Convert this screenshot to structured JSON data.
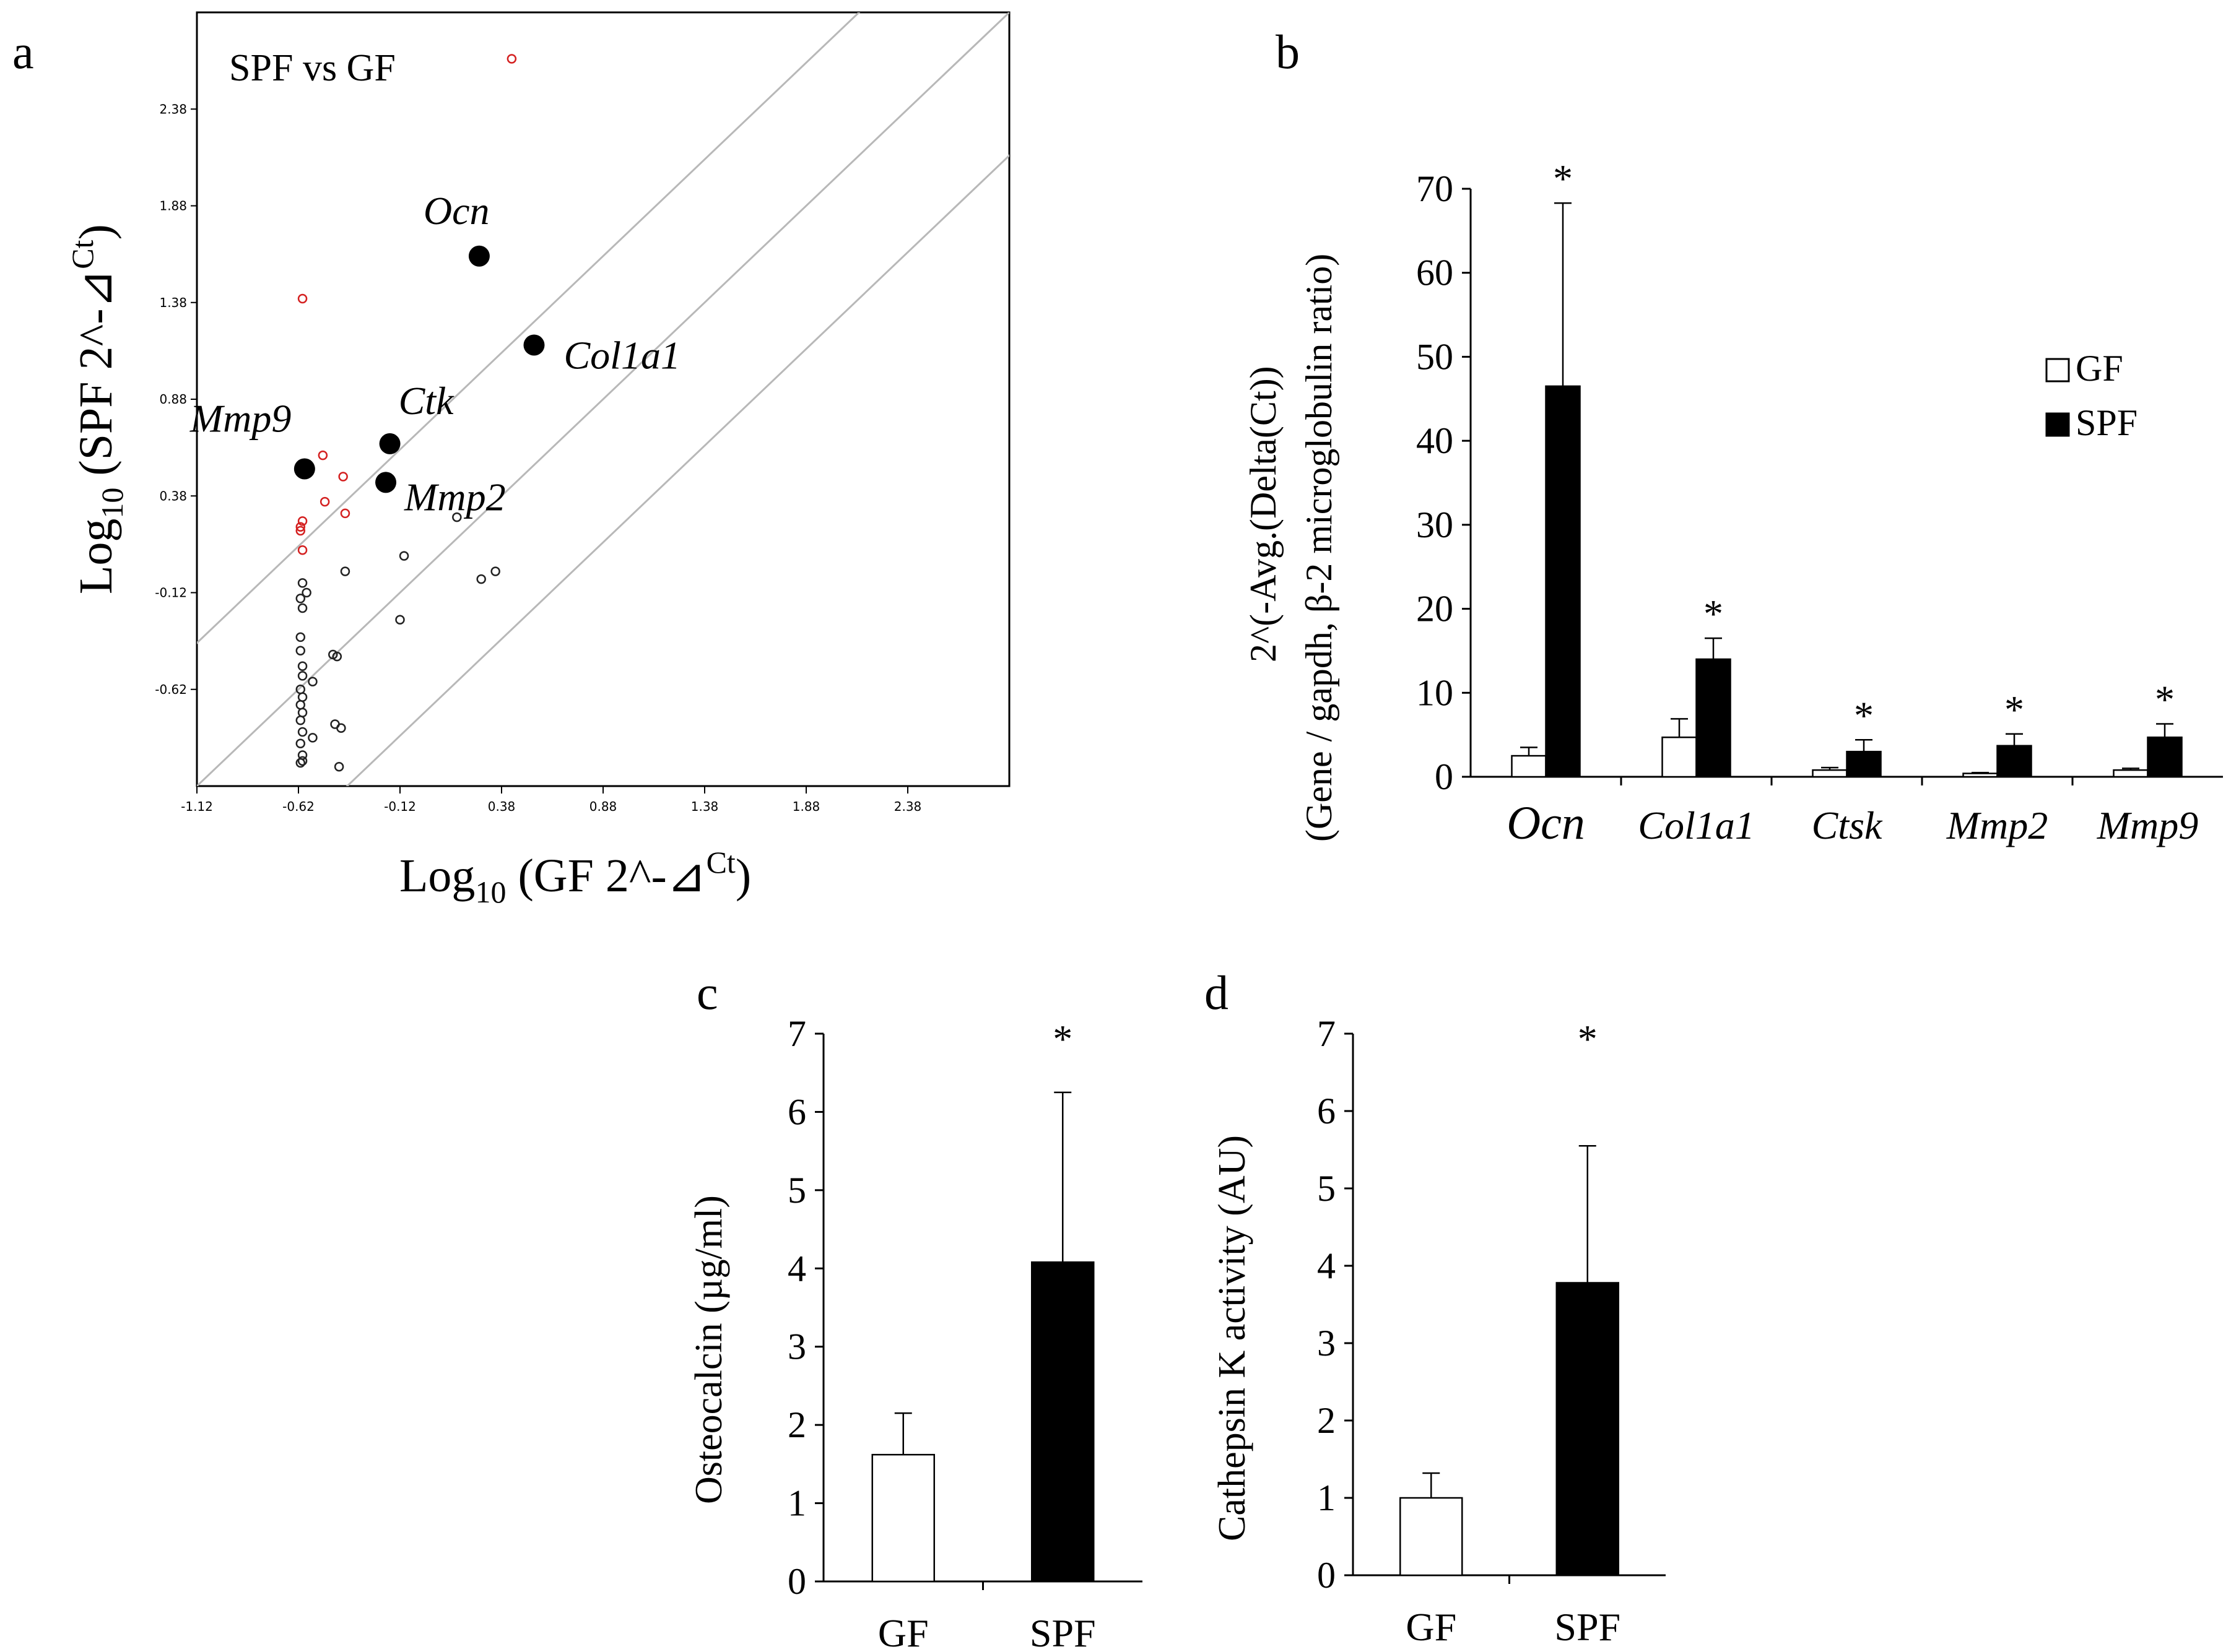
{
  "panels": {
    "a": "a",
    "b": "b",
    "c": "c",
    "d": "d"
  },
  "chart_data": [
    {
      "type": "scatter",
      "title": "SPF vs GF",
      "xlabel": "Log10 (GF 2^-⊿Ct)",
      "ylabel": "Log10 (SPF 2^-⊿Ct)",
      "xlabel_parts": {
        "pre": "Log",
        "sub": "10",
        "post": " (GF 2^-⊿",
        "sup": "Ct",
        "end": ")"
      },
      "ylabel_parts": {
        "pre": "Log",
        "sub": "10",
        "post": " (SPF 2^-⊿",
        "sup": "Ct",
        "end": ")"
      },
      "xlim": [
        -1.12,
        2.88
      ],
      "ylim": [
        -1.12,
        2.88
      ],
      "x_ticks": [
        -1.12,
        -0.62,
        -0.12,
        0.38,
        0.88,
        1.38,
        1.88,
        2.38
      ],
      "y_ticks": [
        -0.62,
        -0.12,
        0.38,
        0.88,
        1.38,
        1.88,
        2.38
      ],
      "x_tick_labels": [
        "-1.12",
        "-0.62",
        "-0.12",
        "0.38",
        "0.88",
        "1.38",
        "1.88",
        "2.38"
      ],
      "y_tick_labels": [
        "-0.62",
        "-0.12",
        "0.38",
        "0.88",
        "1.38",
        "1.88",
        "2.38"
      ],
      "reference_lines": [
        {
          "slope": 1,
          "intercept": -0.74
        },
        {
          "slope": 1,
          "intercept": 0
        },
        {
          "slope": 1,
          "intercept": 0.74
        }
      ],
      "highlighted": [
        {
          "label": "Ocn",
          "x": 0.27,
          "y": 1.62
        },
        {
          "label": "Col1a1",
          "x": 0.54,
          "y": 1.16
        },
        {
          "label": "Ctk",
          "x": -0.17,
          "y": 0.65
        },
        {
          "label": "Mmp2",
          "x": -0.19,
          "y": 0.45
        },
        {
          "label": "Mmp9",
          "x": -0.59,
          "y": 0.52
        }
      ],
      "upregulated_points": [
        {
          "x": 0.43,
          "y": 2.64
        },
        {
          "x": -0.6,
          "y": 1.4
        },
        {
          "x": -0.5,
          "y": 0.59
        },
        {
          "x": -0.4,
          "y": 0.48
        },
        {
          "x": -0.49,
          "y": 0.35
        },
        {
          "x": -0.39,
          "y": 0.29
        },
        {
          "x": -0.6,
          "y": 0.25
        },
        {
          "x": -0.61,
          "y": 0.22
        },
        {
          "x": -0.61,
          "y": 0.2
        },
        {
          "x": -0.6,
          "y": 0.1
        }
      ],
      "other_points": [
        {
          "x": 0.16,
          "y": 0.27
        },
        {
          "x": -0.1,
          "y": 0.07
        },
        {
          "x": 0.35,
          "y": -0.01
        },
        {
          "x": 0.28,
          "y": -0.05
        },
        {
          "x": -0.39,
          "y": -0.01
        },
        {
          "x": -0.6,
          "y": -0.07
        },
        {
          "x": -0.58,
          "y": -0.12
        },
        {
          "x": -0.61,
          "y": -0.15
        },
        {
          "x": -0.6,
          "y": -0.2
        },
        {
          "x": -0.12,
          "y": -0.26
        },
        {
          "x": -0.61,
          "y": -0.35
        },
        {
          "x": -0.61,
          "y": -0.42
        },
        {
          "x": -0.45,
          "y": -0.44
        },
        {
          "x": -0.43,
          "y": -0.45
        },
        {
          "x": -0.6,
          "y": -0.5
        },
        {
          "x": -0.6,
          "y": -0.55
        },
        {
          "x": -0.55,
          "y": -0.58
        },
        {
          "x": -0.61,
          "y": -0.62
        },
        {
          "x": -0.6,
          "y": -0.66
        },
        {
          "x": -0.61,
          "y": -0.7
        },
        {
          "x": -0.6,
          "y": -0.74
        },
        {
          "x": -0.61,
          "y": -0.78
        },
        {
          "x": -0.44,
          "y": -0.8
        },
        {
          "x": -0.41,
          "y": -0.82
        },
        {
          "x": -0.6,
          "y": -0.84
        },
        {
          "x": -0.55,
          "y": -0.87
        },
        {
          "x": -0.61,
          "y": -0.9
        },
        {
          "x": -0.6,
          "y": -0.96
        },
        {
          "x": -0.61,
          "y": -1.0
        },
        {
          "x": -0.42,
          "y": -1.02
        },
        {
          "x": -0.6,
          "y": -0.99
        }
      ]
    },
    {
      "type": "bar",
      "categories": [
        "Ocn",
        "Col1a1",
        "Ctsk",
        "Mmp2",
        "Mmp9"
      ],
      "series": [
        {
          "name": "GF",
          "color": "#ffffff",
          "values": [
            2.5,
            4.7,
            0.8,
            0.4,
            0.8
          ],
          "errors": [
            1.0,
            2.2,
            0.3,
            0.1,
            0.2
          ]
        },
        {
          "name": "SPF",
          "color": "#000000",
          "values": [
            46.5,
            14.0,
            3.0,
            3.7,
            4.7
          ],
          "errors": [
            21.8,
            2.5,
            1.4,
            1.4,
            1.6
          ]
        }
      ],
      "significance": [
        "*",
        "*",
        "*",
        "*",
        "*"
      ],
      "ylabel_line1": "2^(-Avg.(Delta(Ct))",
      "ylabel_line2": "(Gene / gapdh,  β-2 microglobulin ratio)",
      "ylim": [
        0,
        70
      ],
      "y_ticks": [
        0,
        10,
        20,
        30,
        40,
        50,
        60,
        70
      ],
      "y_tick_labels": [
        "0",
        "10",
        "20",
        "30",
        "40",
        "50",
        "60",
        "70"
      ],
      "legend": [
        "GF",
        "SPF"
      ],
      "legend_position": "top-right"
    },
    {
      "type": "bar",
      "categories": [
        "GF",
        "SPF"
      ],
      "values": [
        1.62,
        4.08
      ],
      "errors": [
        0.53,
        2.17
      ],
      "colors": [
        "#ffffff",
        "#000000"
      ],
      "significance": [
        "",
        "*"
      ],
      "ylabel": "Osteocalcin  (µg/ml)",
      "ylim": [
        0,
        7
      ],
      "y_ticks": [
        0,
        1,
        2,
        3,
        4,
        5,
        6,
        7
      ],
      "y_tick_labels": [
        "0",
        "1",
        "2",
        "3",
        "4",
        "5",
        "6",
        "7"
      ]
    },
    {
      "type": "bar",
      "categories": [
        "GF",
        "SPF"
      ],
      "values": [
        1.0,
        3.78
      ],
      "errors": [
        0.32,
        1.77
      ],
      "colors": [
        "#ffffff",
        "#000000"
      ],
      "significance": [
        "",
        "*"
      ],
      "ylabel": "Cathepsin K activity (AU)",
      "ylim": [
        0,
        7
      ],
      "y_ticks": [
        0,
        1,
        2,
        3,
        4,
        5,
        6,
        7
      ],
      "y_tick_labels": [
        "0",
        "1",
        "2",
        "3",
        "4",
        "5",
        "6",
        "7"
      ]
    }
  ]
}
